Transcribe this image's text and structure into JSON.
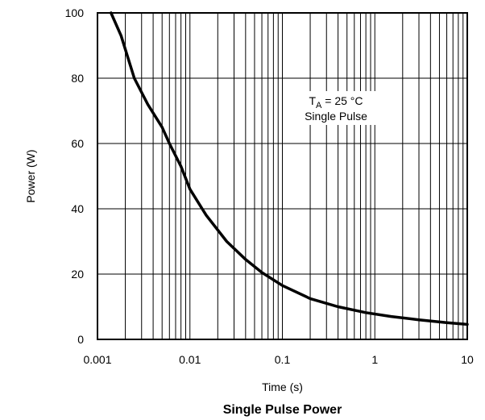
{
  "chart_data": {
    "type": "line",
    "title": "Single Pulse Power",
    "xlabel": "Time (s)",
    "ylabel": "Power  (W)",
    "xscale": "log",
    "xlim": [
      0.001,
      10
    ],
    "ylim": [
      0,
      100
    ],
    "grid": true,
    "x_ticks": [
      "0.001",
      "0.01",
      "0.1",
      "1",
      "10"
    ],
    "y_ticks": [
      "0",
      "20",
      "40",
      "60",
      "80",
      "100"
    ],
    "annotation": {
      "line1_main": "T",
      "line1_sub": "A",
      "line1_rest": " = 25 °C",
      "line2": "Single Pulse"
    },
    "series": [
      {
        "color": "#000000",
        "x": [
          0.0014,
          0.0018,
          0.0025,
          0.0035,
          0.005,
          0.006,
          0.008,
          0.01,
          0.015,
          0.025,
          0.04,
          0.06,
          0.1,
          0.2,
          0.4,
          0.8,
          1.5,
          3,
          6,
          10
        ],
        "y": [
          100,
          93,
          80,
          72,
          65,
          60,
          53,
          46,
          38,
          30,
          24.5,
          20.5,
          16.5,
          12.5,
          10,
          8.2,
          7,
          6,
          5.1,
          4.6
        ]
      }
    ]
  }
}
